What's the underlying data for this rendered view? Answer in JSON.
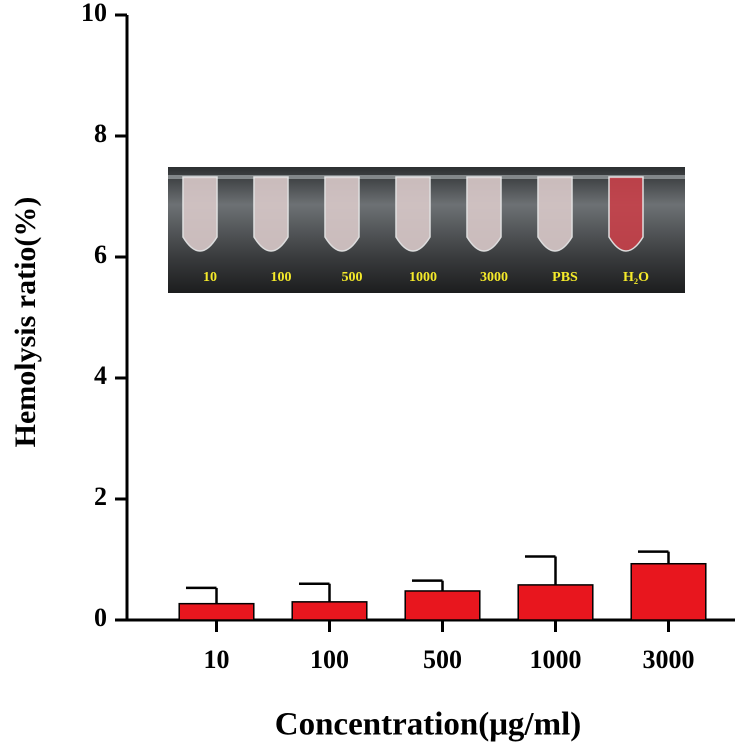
{
  "chart_data": {
    "type": "bar",
    "x_label": "Concentration(μg/ml)",
    "y_label": "Hemolysis ratio(%)",
    "categories": [
      "10",
      "100",
      "500",
      "1000",
      "3000"
    ],
    "values": [
      0.27,
      0.3,
      0.48,
      0.58,
      0.93
    ],
    "errors": [
      0.26,
      0.3,
      0.17,
      0.47,
      0.2
    ],
    "color": "#e8161e",
    "ylim": [
      0,
      10
    ],
    "yticks": [
      0,
      2,
      4,
      6,
      8,
      10
    ],
    "inset_labels": [
      "10",
      "100",
      "500",
      "1000",
      "3000",
      "PBS",
      "H₂O"
    ]
  }
}
